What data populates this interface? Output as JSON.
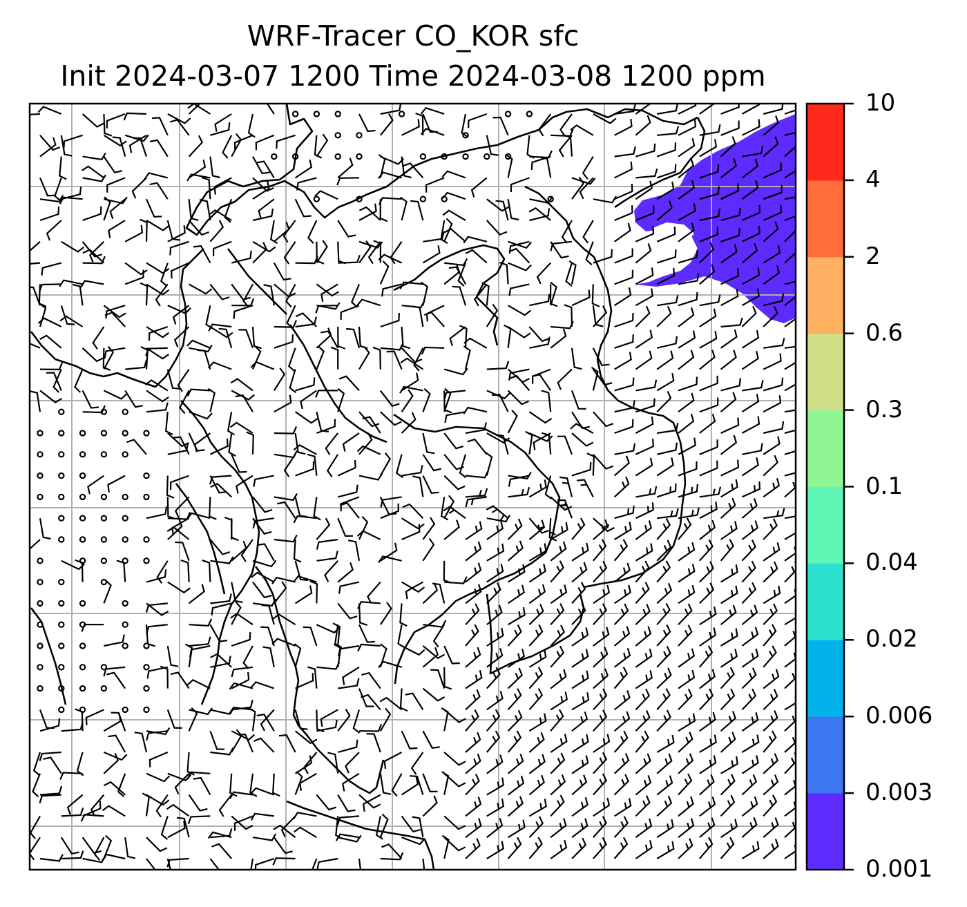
{
  "title": {
    "line1": "WRF-Tracer CO_KOR sfc",
    "line2": "Init 2024-03-07 1200 Time 2024-03-08 1200 ppm"
  },
  "colorbar": {
    "levels": [
      "0.001",
      "0.003",
      "0.006",
      "0.02",
      "0.04",
      "0.1",
      "0.3",
      "0.6",
      "2",
      "4",
      "10"
    ],
    "colors": [
      "#5e2bff",
      "#3a77f0",
      "#00b1ea",
      "#2ee0d0",
      "#5ff7b5",
      "#8ff595",
      "#cfe089",
      "#ffb060",
      "#ff6e3a",
      "#ff2a1b"
    ]
  },
  "map": {
    "plume_color": "#5e2bff",
    "plume_level": "0.001–0.003 ppm",
    "grid": true,
    "coastlines": true,
    "wind_barbs": true
  }
}
